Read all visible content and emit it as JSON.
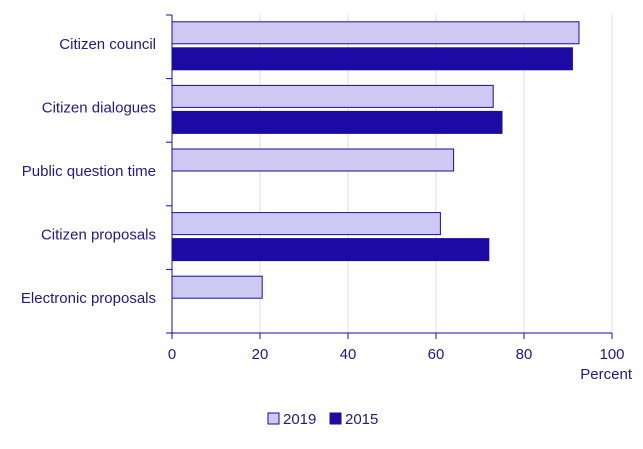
{
  "chart_data": {
    "type": "hbar",
    "categories": [
      "Citizen council",
      "Citizen dialogues",
      "Public question time",
      "Citizen proposals",
      "Electronic proposals"
    ],
    "series": [
      {
        "name": "2019",
        "color": "#cdc9f2",
        "values": [
          92.5,
          73,
          64,
          61,
          20.5
        ]
      },
      {
        "name": "2015",
        "color": "#1c0aa5",
        "values": [
          91,
          75,
          null,
          72,
          null
        ]
      }
    ],
    "xlabel": "Percent",
    "xlim": [
      0,
      100
    ],
    "xticks": [
      0,
      20,
      40,
      60,
      80,
      100
    ],
    "grid": true,
    "legend": "bottom"
  }
}
